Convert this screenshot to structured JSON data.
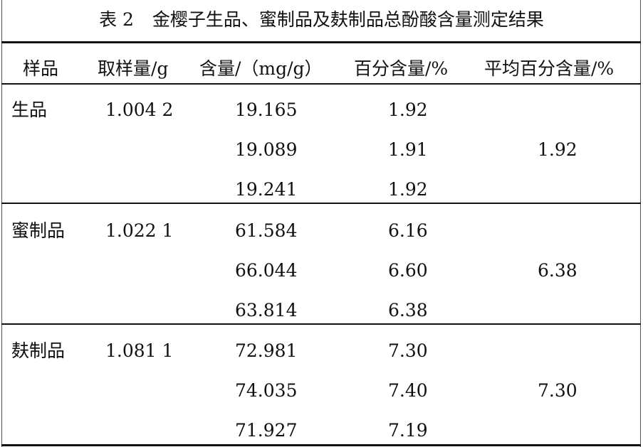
{
  "caption": {
    "table_no": "表 2",
    "title": "金樱子生品、蜜制品及麸制品总酚酸含量测定结果"
  },
  "header": {
    "sample": "样品",
    "weight": "取样量/g",
    "content": "含量/（mg/g）",
    "percent": "百分含量/%",
    "avg_percent": "平均百分含量/%"
  },
  "groups": [
    {
      "sample": "生品",
      "weight": "1.004 2",
      "rows": [
        {
          "content": "19.165",
          "percent": "1.92"
        },
        {
          "content": "19.089",
          "percent": "1.91"
        },
        {
          "content": "19.241",
          "percent": "1.92"
        }
      ],
      "avg": "1.92"
    },
    {
      "sample": "蜜制品",
      "weight": "1.022 1",
      "rows": [
        {
          "content": "61.584",
          "percent": "6.16"
        },
        {
          "content": "66.044",
          "percent": "6.60"
        },
        {
          "content": "63.814",
          "percent": "6.38"
        }
      ],
      "avg": "6.38"
    },
    {
      "sample": "麸制品",
      "weight": "1.081 1",
      "rows": [
        {
          "content": "72.981",
          "percent": "7.30"
        },
        {
          "content": "74.035",
          "percent": "7.40"
        },
        {
          "content": "71.927",
          "percent": "7.19"
        }
      ],
      "avg": "7.30"
    }
  ]
}
